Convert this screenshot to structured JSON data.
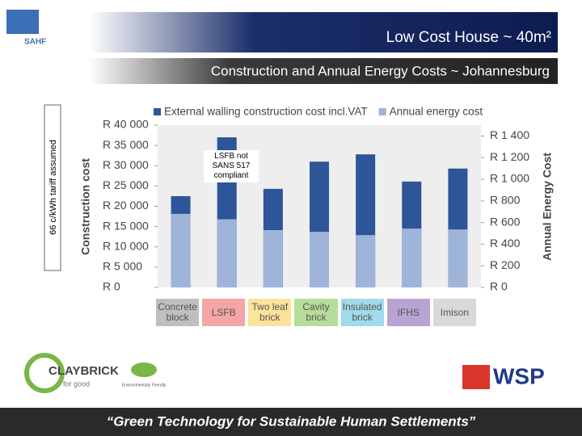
{
  "header": {
    "title": "Low Cost House ~ 40m²",
    "subtitle": "Construction and Annual Energy Costs ~ Johannesburg"
  },
  "logos": {
    "sahf": "SAHF",
    "claybrick": "CLAYBRICK",
    "claybrick_tag": "for good",
    "eco": "Environmentally Friendly",
    "wsp": "WSP"
  },
  "footer": "“Green Technology for Sustainable Human Settlements”",
  "side_note": "66 c/kWh tariff assumed",
  "chart_data": {
    "type": "bar",
    "categories": [
      "Concrete block",
      "LSFB",
      "Two leaf brick",
      "Cavity brick",
      "Insulated brick",
      "IFHS",
      "Imison"
    ],
    "category_colors": [
      "#bfbfbf",
      "#f4a6a6",
      "#fbe39a",
      "#b7dd9a",
      "#9fdbea",
      "#b9a3d3",
      "#d9d9d9"
    ],
    "series": [
      {
        "name": "External walling construction cost incl.VAT",
        "color": "#2e5597",
        "values": [
          22500,
          37000,
          24300,
          31000,
          32800,
          26100,
          29300
        ]
      },
      {
        "name": "Annual energy cost",
        "color": "#9fb4d9",
        "axis": "y2",
        "values": [
          680,
          630,
          530,
          514,
          484,
          544,
          536
        ]
      }
    ],
    "y_label": "Construction cost",
    "y2_label": "Annual Energy Cost",
    "ylim": [
      0,
      40000
    ],
    "yticks": [
      {
        "value": 0,
        "label": "R 0"
      },
      {
        "value": 5000,
        "label": "R 5 000"
      },
      {
        "value": 10000,
        "label": "R 10 000"
      },
      {
        "value": 15000,
        "label": "R 15 000"
      },
      {
        "value": 20000,
        "label": "R 20 000"
      },
      {
        "value": 25000,
        "label": "R 25 000"
      },
      {
        "value": 30000,
        "label": "R 30 000"
      },
      {
        "value": 35000,
        "label": "R 35 000"
      },
      {
        "value": 40000,
        "label": "R 40 000"
      }
    ],
    "y2lim": [
      0,
      1500
    ],
    "y2ticks": [
      {
        "value": 0,
        "label": "R 0"
      },
      {
        "value": 200,
        "label": "R 200"
      },
      {
        "value": 400,
        "label": "R 400"
      },
      {
        "value": 600,
        "label": "R 600"
      },
      {
        "value": 800,
        "label": "R 800"
      },
      {
        "value": 1000,
        "label": "R 1 000"
      },
      {
        "value": 1200,
        "label": "R 1 200"
      },
      {
        "value": 1400,
        "label": "R 1 400"
      }
    ],
    "annotation": "LSFB not SANS 517 compliant",
    "grid": false,
    "legend": "top"
  }
}
